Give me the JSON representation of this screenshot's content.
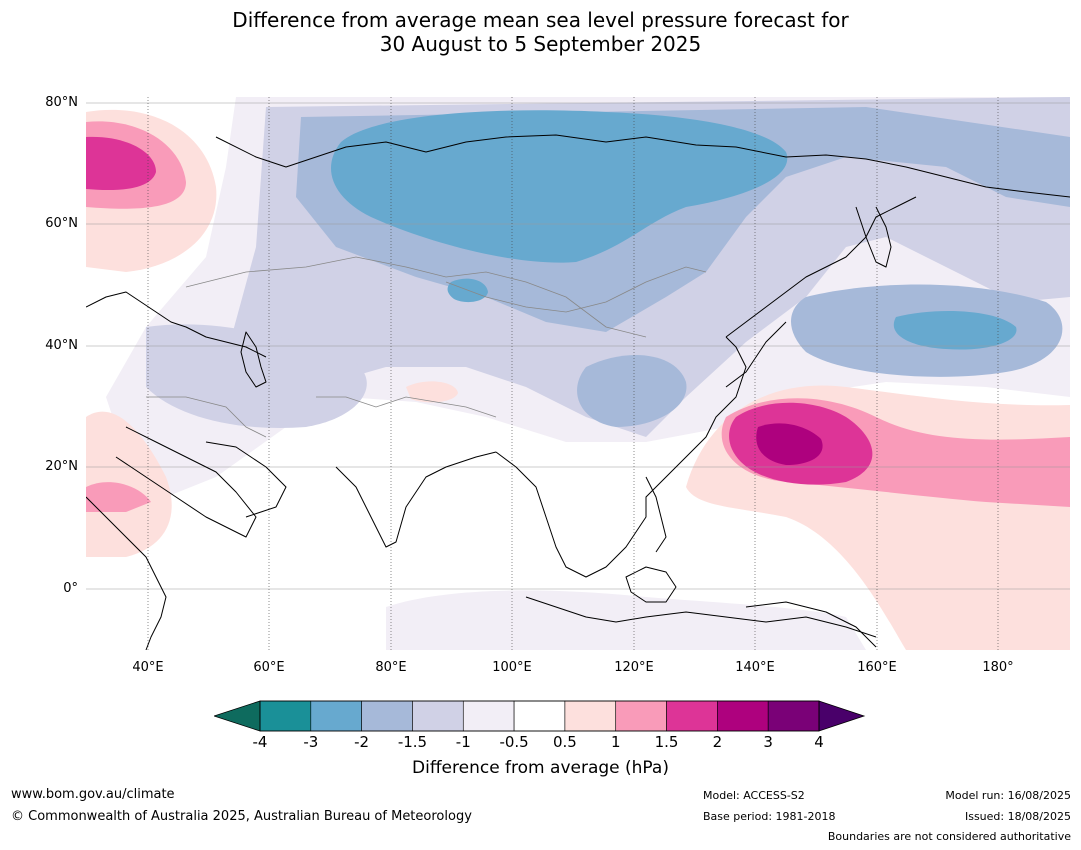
{
  "title_line1": "Difference from average mean sea level pressure forecast for",
  "title_line2": "30 August to 5 September 2025",
  "lat_labels": [
    "80°N",
    "60°N",
    "40°N",
    "20°N",
    "0°"
  ],
  "lon_labels": [
    "40°E",
    "60°E",
    "80°E",
    "100°E",
    "120°E",
    "140°E",
    "160°E",
    "180°"
  ],
  "colorbar": {
    "ticks": [
      "-4",
      "-3",
      "-2",
      "-1.5",
      "-1",
      "-0.5",
      "0.5",
      "1",
      "1.5",
      "2",
      "3",
      "4"
    ],
    "colors": [
      "#1a9098",
      "#67a9cf",
      "#a6b9d9",
      "#d0d1e6",
      "#f2eef6",
      "#ffffff",
      "#fde0dd",
      "#f99bb9",
      "#dd3497",
      "#ae017e",
      "#7a0177"
    ],
    "under_color": "#0e6b5e",
    "over_color": "#49006a",
    "label": "Difference from average (hPa)"
  },
  "footer": {
    "url": "www.bom.gov.au/climate",
    "copyright": "© Commonwealth of Australia 2025, Australian Bureau of Meteorology",
    "model": "Model: ACCESS-S2",
    "base_period": "Base period: 1981-2018",
    "model_run": "Model run: 16/08/2025",
    "issued": "Issued: 18/08/2025",
    "boundaries": "Boundaries are not considered authoritative"
  }
}
